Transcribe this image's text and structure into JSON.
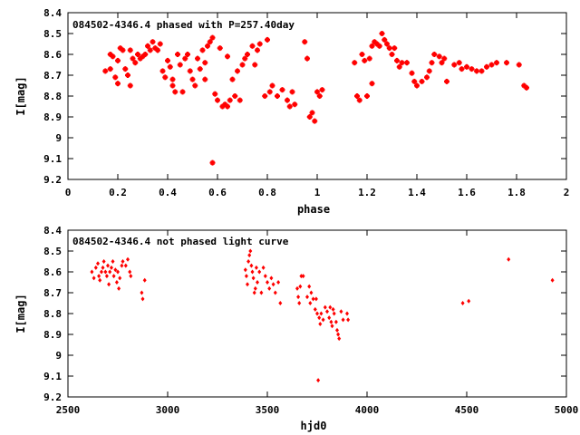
{
  "colors": {
    "points": "#ff0000",
    "axes": "#000000",
    "background": "#ffffff"
  },
  "chart_data": [
    {
      "type": "scatter",
      "title": "084502-4346.4 phased with P=257.40day",
      "xlabel": "phase",
      "ylabel": "I[mag]",
      "xlim": [
        0,
        2
      ],
      "ylim": [
        8.4,
        9.2
      ],
      "y_inverted": true,
      "xticks": [
        "0",
        "0.2",
        "0.4",
        "0.6",
        "0.8",
        "1",
        "1.2",
        "1.4",
        "1.6",
        "1.8",
        "2"
      ],
      "xtick_values": [
        0,
        0.2,
        0.4,
        0.6,
        0.8,
        1.0,
        1.2,
        1.4,
        1.6,
        1.8,
        2.0
      ],
      "yticks": [
        "8.4",
        "8.5",
        "8.6",
        "8.7",
        "8.8",
        "8.9",
        "9",
        "9.1",
        "9.2"
      ],
      "ytick_values": [
        8.4,
        8.5,
        8.6,
        8.7,
        8.8,
        8.9,
        9.0,
        9.1,
        9.2
      ],
      "marker": "cross",
      "grid": false,
      "points": [
        [
          0.15,
          8.68
        ],
        [
          0.17,
          8.67
        ],
        [
          0.17,
          8.6
        ],
        [
          0.18,
          8.61
        ],
        [
          0.19,
          8.71
        ],
        [
          0.2,
          8.74
        ],
        [
          0.2,
          8.63
        ],
        [
          0.21,
          8.57
        ],
        [
          0.22,
          8.58
        ],
        [
          0.23,
          8.67
        ],
        [
          0.24,
          8.7
        ],
        [
          0.25,
          8.75
        ],
        [
          0.25,
          8.58
        ],
        [
          0.26,
          8.62
        ],
        [
          0.27,
          8.64
        ],
        [
          0.28,
          8.6
        ],
        [
          0.29,
          8.62
        ],
        [
          0.3,
          8.61
        ],
        [
          0.31,
          8.6
        ],
        [
          0.32,
          8.56
        ],
        [
          0.33,
          8.58
        ],
        [
          0.34,
          8.54
        ],
        [
          0.35,
          8.57
        ],
        [
          0.36,
          8.58
        ],
        [
          0.37,
          8.55
        ],
        [
          0.38,
          8.68
        ],
        [
          0.39,
          8.71
        ],
        [
          0.4,
          8.63
        ],
        [
          0.41,
          8.66
        ],
        [
          0.42,
          8.72
        ],
        [
          0.42,
          8.75
        ],
        [
          0.43,
          8.78
        ],
        [
          0.44,
          8.6
        ],
        [
          0.45,
          8.65
        ],
        [
          0.46,
          8.78
        ],
        [
          0.47,
          8.62
        ],
        [
          0.48,
          8.6
        ],
        [
          0.49,
          8.68
        ],
        [
          0.5,
          8.72
        ],
        [
          0.51,
          8.75
        ],
        [
          0.52,
          8.62
        ],
        [
          0.53,
          8.67
        ],
        [
          0.54,
          8.58
        ],
        [
          0.55,
          8.64
        ],
        [
          0.55,
          8.72
        ],
        [
          0.56,
          8.56
        ],
        [
          0.57,
          8.54
        ],
        [
          0.58,
          8.52
        ],
        [
          0.58,
          9.12
        ],
        [
          0.59,
          8.79
        ],
        [
          0.6,
          8.82
        ],
        [
          0.61,
          8.57
        ],
        [
          0.62,
          8.85
        ],
        [
          0.63,
          8.84
        ],
        [
          0.64,
          8.85
        ],
        [
          0.64,
          8.61
        ],
        [
          0.65,
          8.82
        ],
        [
          0.66,
          8.72
        ],
        [
          0.67,
          8.8
        ],
        [
          0.68,
          8.68
        ],
        [
          0.69,
          8.82
        ],
        [
          0.7,
          8.65
        ],
        [
          0.71,
          8.62
        ],
        [
          0.72,
          8.6
        ],
        [
          0.74,
          8.56
        ],
        [
          0.75,
          8.65
        ],
        [
          0.76,
          8.58
        ],
        [
          0.77,
          8.55
        ],
        [
          0.79,
          8.8
        ],
        [
          0.8,
          8.53
        ],
        [
          0.81,
          8.78
        ],
        [
          0.82,
          8.75
        ],
        [
          0.84,
          8.8
        ],
        [
          0.86,
          8.77
        ],
        [
          0.88,
          8.82
        ],
        [
          0.89,
          8.85
        ],
        [
          0.9,
          8.78
        ],
        [
          0.91,
          8.84
        ],
        [
          0.95,
          8.54
        ],
        [
          0.96,
          8.62
        ],
        [
          0.97,
          8.9
        ],
        [
          0.98,
          8.88
        ],
        [
          0.99,
          8.92
        ],
        [
          1.0,
          8.78
        ],
        [
          1.01,
          8.8
        ],
        [
          1.02,
          8.77
        ],
        [
          1.15,
          8.64
        ],
        [
          1.16,
          8.8
        ],
        [
          1.17,
          8.82
        ],
        [
          1.18,
          8.6
        ],
        [
          1.19,
          8.63
        ],
        [
          1.2,
          8.8
        ],
        [
          1.21,
          8.62
        ],
        [
          1.22,
          8.56
        ],
        [
          1.22,
          8.74
        ],
        [
          1.23,
          8.54
        ],
        [
          1.24,
          8.55
        ],
        [
          1.25,
          8.56
        ],
        [
          1.26,
          8.5
        ],
        [
          1.27,
          8.53
        ],
        [
          1.28,
          8.55
        ],
        [
          1.29,
          8.57
        ],
        [
          1.3,
          8.6
        ],
        [
          1.31,
          8.57
        ],
        [
          1.32,
          8.63
        ],
        [
          1.33,
          8.66
        ],
        [
          1.34,
          8.64
        ],
        [
          1.36,
          8.64
        ],
        [
          1.38,
          8.69
        ],
        [
          1.39,
          8.73
        ],
        [
          1.4,
          8.75
        ],
        [
          1.42,
          8.73
        ],
        [
          1.44,
          8.71
        ],
        [
          1.45,
          8.68
        ],
        [
          1.46,
          8.64
        ],
        [
          1.47,
          8.6
        ],
        [
          1.49,
          8.61
        ],
        [
          1.5,
          8.64
        ],
        [
          1.51,
          8.62
        ],
        [
          1.52,
          8.73
        ],
        [
          1.55,
          8.65
        ],
        [
          1.57,
          8.64
        ],
        [
          1.58,
          8.67
        ],
        [
          1.6,
          8.66
        ],
        [
          1.62,
          8.67
        ],
        [
          1.64,
          8.68
        ],
        [
          1.66,
          8.68
        ],
        [
          1.68,
          8.66
        ],
        [
          1.7,
          8.65
        ],
        [
          1.72,
          8.64
        ],
        [
          1.76,
          8.64
        ],
        [
          1.81,
          8.65
        ],
        [
          1.83,
          8.75
        ],
        [
          1.84,
          8.76
        ]
      ]
    },
    {
      "type": "scatter",
      "title": "084502-4346.4 not phased light curve",
      "xlabel": "hjd0",
      "ylabel": "I[mag]",
      "xlim": [
        2500,
        5000
      ],
      "ylim": [
        8.4,
        9.2
      ],
      "y_inverted": true,
      "xticks": [
        "2500",
        "3000",
        "3500",
        "4000",
        "4500",
        "5000"
      ],
      "xtick_values": [
        2500,
        3000,
        3500,
        4000,
        4500,
        5000
      ],
      "yticks": [
        "8.4",
        "8.5",
        "8.6",
        "8.7",
        "8.8",
        "8.9",
        "9",
        "9.1",
        "9.2"
      ],
      "ytick_values": [
        8.4,
        8.5,
        8.6,
        8.7,
        8.8,
        8.9,
        9.0,
        9.1,
        9.2
      ],
      "marker": "diamond",
      "grid": false,
      "points": [
        [
          2620,
          8.6
        ],
        [
          2630,
          8.63
        ],
        [
          2640,
          8.58
        ],
        [
          2650,
          8.56
        ],
        [
          2655,
          8.62
        ],
        [
          2660,
          8.64
        ],
        [
          2668,
          8.6
        ],
        [
          2675,
          8.58
        ],
        [
          2680,
          8.55
        ],
        [
          2688,
          8.6
        ],
        [
          2695,
          8.62
        ],
        [
          2700,
          8.57
        ],
        [
          2705,
          8.66
        ],
        [
          2710,
          8.6
        ],
        [
          2718,
          8.58
        ],
        [
          2725,
          8.55
        ],
        [
          2730,
          8.62
        ],
        [
          2738,
          8.59
        ],
        [
          2745,
          8.65
        ],
        [
          2750,
          8.6
        ],
        [
          2755,
          8.68
        ],
        [
          2760,
          8.63
        ],
        [
          2770,
          8.57
        ],
        [
          2775,
          8.55
        ],
        [
          2790,
          8.57
        ],
        [
          2800,
          8.54
        ],
        [
          2810,
          8.6
        ],
        [
          2815,
          8.62
        ],
        [
          2870,
          8.7
        ],
        [
          2875,
          8.73
        ],
        [
          2885,
          8.64
        ],
        [
          3390,
          8.59
        ],
        [
          3395,
          8.62
        ],
        [
          3400,
          8.66
        ],
        [
          3405,
          8.55
        ],
        [
          3410,
          8.52
        ],
        [
          3415,
          8.5
        ],
        [
          3420,
          8.57
        ],
        [
          3425,
          8.6
        ],
        [
          3430,
          8.63
        ],
        [
          3435,
          8.7
        ],
        [
          3440,
          8.68
        ],
        [
          3445,
          8.58
        ],
        [
          3450,
          8.65
        ],
        [
          3460,
          8.6
        ],
        [
          3470,
          8.7
        ],
        [
          3480,
          8.58
        ],
        [
          3490,
          8.62
        ],
        [
          3500,
          8.65
        ],
        [
          3510,
          8.68
        ],
        [
          3520,
          8.63
        ],
        [
          3530,
          8.66
        ],
        [
          3540,
          8.7
        ],
        [
          3555,
          8.65
        ],
        [
          3565,
          8.75
        ],
        [
          3650,
          8.68
        ],
        [
          3655,
          8.72
        ],
        [
          3660,
          8.75
        ],
        [
          3665,
          8.67
        ],
        [
          3670,
          8.62
        ],
        [
          3680,
          8.62
        ],
        [
          3700,
          8.72
        ],
        [
          3710,
          8.67
        ],
        [
          3715,
          8.75
        ],
        [
          3720,
          8.7
        ],
        [
          3730,
          8.73
        ],
        [
          3740,
          8.78
        ],
        [
          3745,
          8.73
        ],
        [
          3750,
          8.8
        ],
        [
          3755,
          9.12
        ],
        [
          3760,
          8.82
        ],
        [
          3765,
          8.85
        ],
        [
          3770,
          8.8
        ],
        [
          3780,
          8.83
        ],
        [
          3790,
          8.77
        ],
        [
          3800,
          8.79
        ],
        [
          3810,
          8.82
        ],
        [
          3815,
          8.77
        ],
        [
          3820,
          8.84
        ],
        [
          3825,
          8.86
        ],
        [
          3830,
          8.78
        ],
        [
          3835,
          8.8
        ],
        [
          3845,
          8.84
        ],
        [
          3850,
          8.88
        ],
        [
          3855,
          8.9
        ],
        [
          3860,
          8.92
        ],
        [
          3870,
          8.79
        ],
        [
          3880,
          8.83
        ],
        [
          3900,
          8.8
        ],
        [
          3905,
          8.83
        ],
        [
          4480,
          8.75
        ],
        [
          4510,
          8.74
        ],
        [
          4710,
          8.54
        ],
        [
          4930,
          8.64
        ]
      ]
    }
  ]
}
